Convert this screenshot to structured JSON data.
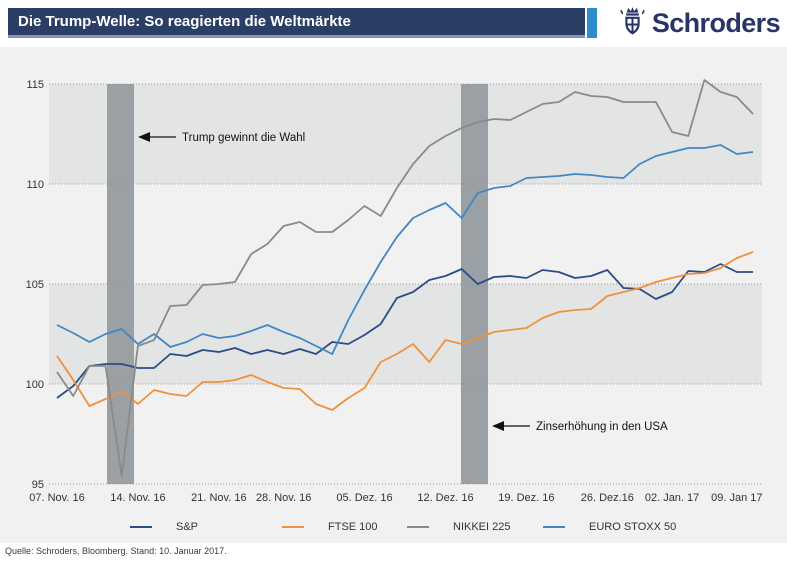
{
  "header": {
    "title": "Die Trump-Welle: So reagierten die Weltmärkte",
    "brand": "Schroders"
  },
  "chart_data": {
    "type": "line",
    "title": "Die Trump-Welle: So reagierten die Weltmärkte",
    "ylim": [
      95,
      115
    ],
    "yticks": [
      115,
      110,
      105,
      100,
      95
    ],
    "x_tick_labels": [
      "07. Nov. 16",
      "14. Nov. 16",
      "21. Nov. 16",
      "28. Nov. 16",
      "05. Dez. 16",
      "12. Dez. 16",
      "19. Dez. 16",
      "26. Dez.16",
      "02. Jan. 17",
      "09. Jan 17"
    ],
    "x_tick_positions": [
      0,
      5,
      10,
      14,
      19,
      24,
      29,
      34,
      38,
      42
    ],
    "n_points": 44,
    "grid": "dotted-horizontal",
    "legend_position": "bottom",
    "colors": {
      "shaded_band": "#e3e5e5",
      "event_band": "#9aa0a4",
      "gridline": "#999999",
      "annotation": "#111111"
    },
    "shaded_y_bands": [
      [
        100,
        105
      ],
      [
        110,
        115
      ]
    ],
    "event_bands": [
      {
        "label": "Trump gewinnt die Wahl",
        "x_from": 3.09,
        "x_to": 4.76,
        "arrow_y": 112.35
      },
      {
        "label": "Zinserhöhung in den USA",
        "x_from": 24.96,
        "x_to": 26.63,
        "arrow_y": 97.9
      }
    ],
    "series": [
      {
        "name": "S&P",
        "color": "#2a4d85",
        "values": [
          99.3,
          99.9,
          100.9,
          101.0,
          101.0,
          100.8,
          100.8,
          101.5,
          101.4,
          101.7,
          101.6,
          101.8,
          101.5,
          101.7,
          101.5,
          101.75,
          101.5,
          102.1,
          102.0,
          102.45,
          103.0,
          104.3,
          104.6,
          105.2,
          105.4,
          105.75,
          105.0,
          105.35,
          105.4,
          105.3,
          105.7,
          105.6,
          105.3,
          105.4,
          105.7,
          104.8,
          104.75,
          104.25,
          104.6,
          105.65,
          105.6,
          106.0,
          105.6,
          105.6
        ]
      },
      {
        "name": "FTSE 100",
        "color": "#f0913e",
        "values": [
          101.4,
          100.2,
          98.9,
          99.25,
          99.65,
          99.0,
          99.7,
          99.5,
          99.4,
          100.1,
          100.1,
          100.2,
          100.45,
          100.1,
          99.8,
          99.75,
          99.0,
          98.7,
          99.3,
          99.8,
          101.1,
          101.5,
          102.0,
          101.1,
          102.2,
          102.0,
          102.3,
          102.6,
          102.7,
          102.8,
          103.3,
          103.6,
          103.7,
          103.75,
          104.4,
          104.6,
          104.8,
          105.1,
          105.3,
          105.5,
          105.55,
          105.8,
          106.3,
          106.6
        ]
      },
      {
        "name": "NIKKEI 225",
        "color": "#8a8a8a",
        "values": [
          100.6,
          99.4,
          100.9,
          100.9,
          95.4,
          101.9,
          102.2,
          103.9,
          103.95,
          104.95,
          105.0,
          105.1,
          106.5,
          107.0,
          107.9,
          108.1,
          107.6,
          107.6,
          108.2,
          108.9,
          108.4,
          109.8,
          111.0,
          111.9,
          112.4,
          112.8,
          113.1,
          113.25,
          113.2,
          113.6,
          114.0,
          114.1,
          114.6,
          114.4,
          114.35,
          114.1,
          114.1,
          114.1,
          112.6,
          112.4,
          115.2,
          114.6,
          114.35,
          113.5
        ]
      },
      {
        "name": "EURO STOXX 50",
        "color": "#4286c5",
        "values": [
          102.95,
          102.55,
          102.1,
          102.5,
          102.75,
          102.0,
          102.5,
          101.85,
          102.1,
          102.5,
          102.3,
          102.4,
          102.65,
          102.95,
          102.6,
          102.3,
          101.9,
          101.5,
          103.2,
          104.7,
          106.1,
          107.35,
          108.3,
          108.7,
          109.05,
          108.3,
          109.55,
          109.8,
          109.9,
          110.3,
          110.35,
          110.4,
          110.5,
          110.45,
          110.35,
          110.3,
          111.0,
          111.4,
          111.6,
          111.8,
          111.8,
          111.95,
          111.5,
          111.6
        ]
      }
    ]
  },
  "footer": {
    "source": "Quelle: Schroders, Bloomberg. Stand: 10. Januar 2017."
  }
}
